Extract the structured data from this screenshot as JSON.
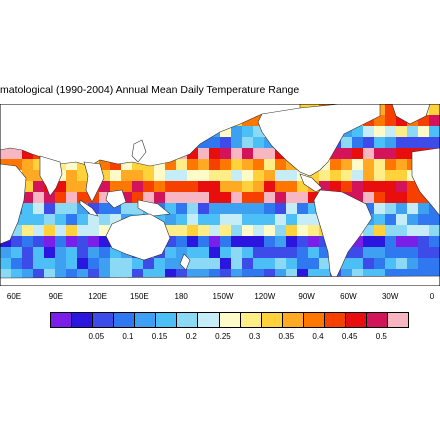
{
  "map": {
    "title": "matological (1990-2004) Annual Mean Daily Temperature Range",
    "lon_labels": [
      "60E",
      "90E",
      "120E",
      "150E",
      "180",
      "150W",
      "120W",
      "90W",
      "60W",
      "30W",
      "0"
    ],
    "colorbar": {
      "colors": [
        "#7b1fe8",
        "#2b16e0",
        "#3d4ce8",
        "#2f78f0",
        "#3ea0f0",
        "#4cc0f6",
        "#8cd9f5",
        "#c6ecf7",
        "#fffbc8",
        "#ffee88",
        "#ffd23c",
        "#ffaa22",
        "#ff7700",
        "#f54000",
        "#e80e0e",
        "#d4145a",
        "#f7b6c2"
      ],
      "labels": [
        "0.05",
        "0.1",
        "0.15",
        "0.2",
        "0.25",
        "0.3",
        "0.35",
        "0.4",
        "0.45",
        "0.5"
      ]
    }
  }
}
